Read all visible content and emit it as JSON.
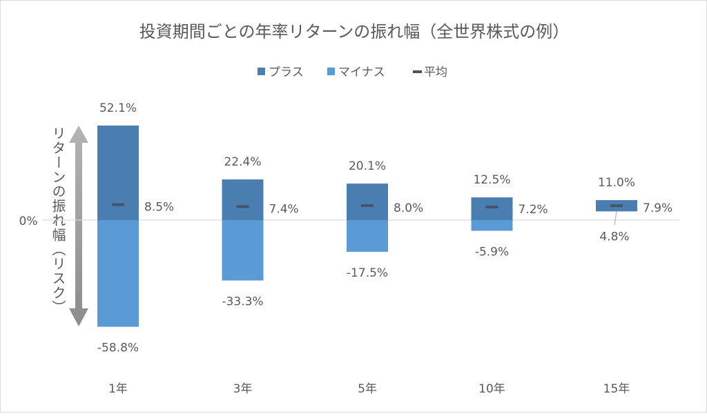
{
  "chart_data": {
    "type": "floating-bar",
    "title": "投資期間ごとの年率リターンの振れ幅（全世界株式の例）",
    "ylabel": "リターンの振れ幅（リスク）",
    "zero_label": "0%",
    "categories": [
      "1年",
      "3年",
      "5年",
      "10年",
      "15年"
    ],
    "max": [
      52.1,
      22.4,
      20.1,
      12.5,
      11.0
    ],
    "min": [
      -58.8,
      -33.3,
      -17.5,
      -5.9,
      4.8
    ],
    "mean": [
      8.5,
      7.4,
      8.0,
      7.2,
      7.9
    ],
    "max_labels": [
      "52.1%",
      "22.4%",
      "20.1%",
      "12.5%",
      "11.0%"
    ],
    "min_labels": [
      "-58.8%",
      "-33.3%",
      "-17.5%",
      "-5.9%",
      "4.8%"
    ],
    "mean_labels": [
      "8.5%",
      "7.4%",
      "8.0%",
      "7.2%",
      "7.9%"
    ],
    "legend": [
      {
        "name": "プラス",
        "color": "#4a7eb0"
      },
      {
        "name": "マイナス",
        "color": "#5b9bd5"
      },
      {
        "name": "平均",
        "color": "#44546a"
      }
    ],
    "legend_position": "top",
    "grid": false,
    "unit": "%"
  }
}
